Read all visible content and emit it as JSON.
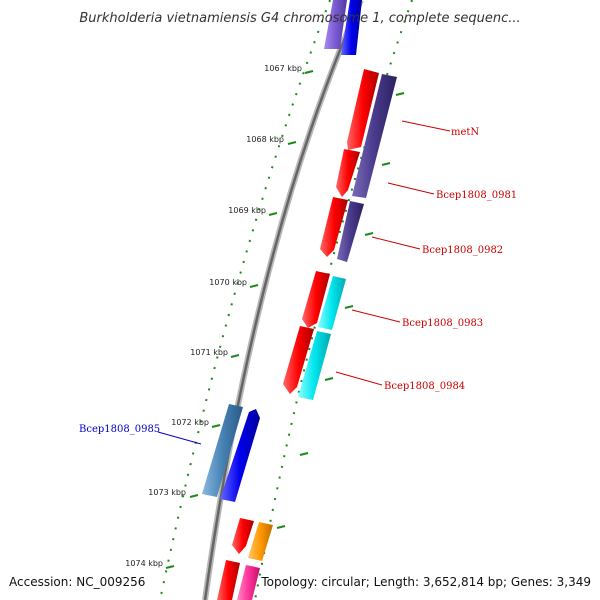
{
  "title": "Burkholderia vietnamiensis G4 chromosome 1, complete sequenc...",
  "ruler": {
    "labels": [
      "1067 kbp",
      "1068 kbp",
      "1069 kbp",
      "1070 kbp",
      "1071 kbp",
      "1072 kbp",
      "1073 kbp",
      "1074 kbp"
    ]
  },
  "genes": {
    "labels": [
      {
        "name": "metN",
        "color": "#cc0000"
      },
      {
        "name": "Bcep1808_0981",
        "color": "#cc0000"
      },
      {
        "name": "Bcep1808_0982",
        "color": "#cc0000"
      },
      {
        "name": "Bcep1808_0983",
        "color": "#cc0000"
      },
      {
        "name": "Bcep1808_0984",
        "color": "#cc0000"
      },
      {
        "name": "Bcep1808_0985",
        "color": "#0000cc"
      }
    ]
  },
  "footer": {
    "accession": "Accession: NC_009256",
    "topology": "Topology: circular; Length: 3,652,814 bp; Genes: 3,349"
  },
  "colors": {
    "cds_red": "#ff0000",
    "cds_blue": "#0000ee",
    "cog_purple": "#4a3a8c",
    "cog_lightpurple": "#7a5ad0",
    "cog_cyan": "#00e5ee",
    "cog_steelblue": "#4682b4",
    "cog_orange": "#ff9900",
    "cog_pink": "#ff3399",
    "tick_green": "#1a8a1a"
  }
}
